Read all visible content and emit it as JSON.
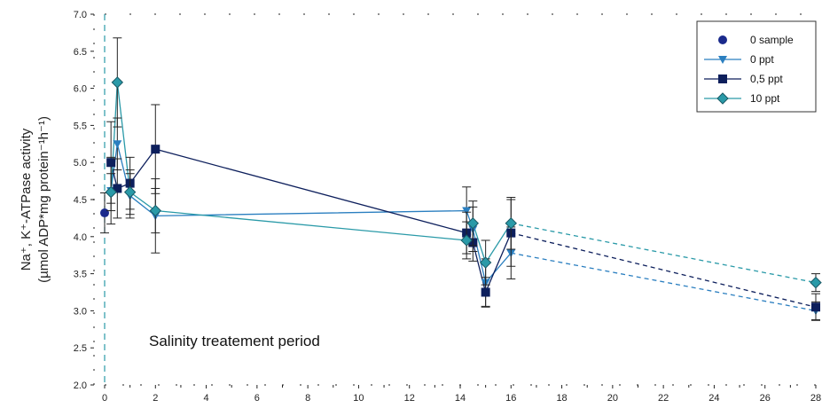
{
  "chart_data": {
    "type": "line",
    "xlim": [
      0,
      28
    ],
    "ylim": [
      2.0,
      7.0
    ],
    "x_ticks": [
      0,
      2,
      4,
      6,
      8,
      10,
      12,
      14,
      16,
      18,
      20,
      22,
      24,
      26,
      28
    ],
    "x_tick_labels": [
      "0",
      "2",
      "4",
      "6",
      "8",
      "10",
      "12",
      "14",
      "16",
      "18",
      "20",
      "22",
      "24",
      "26",
      "28"
    ],
    "y_ticks": [
      2.0,
      2.5,
      3.0,
      3.5,
      4.0,
      4.5,
      5.0,
      5.5,
      6.0,
      6.5,
      7.0
    ],
    "y_tick_labels": [
      "2.0",
      "2.5",
      "3.0",
      "3.5",
      "4.0",
      "4.5",
      "5.0",
      "5.5",
      "6.0",
      "6.5",
      "7.0"
    ],
    "ylabel_line1": "Na⁺, K⁺-ATPase activity",
    "ylabel_line2": "(µmol ADP*mg protein⁻¹h⁻¹)",
    "annotation": "Salinity treatement period",
    "treatment_marker_x": 0,
    "legend_position": "top-right",
    "grid": false,
    "series": [
      {
        "name": "0 sample",
        "color": "#1a2a8c",
        "marker": "circle",
        "x": [
          0
        ],
        "y": [
          4.32
        ],
        "err": [
          0.27
        ],
        "line": false
      },
      {
        "name": "0 ppt",
        "color": "#2b7fc0",
        "marker": "triangle-down",
        "x": [
          0.25,
          0.5,
          1,
          2,
          14.25,
          14.5,
          15,
          16,
          28
        ],
        "y": [
          4.62,
          5.25,
          4.55,
          4.28,
          4.35,
          4.1,
          3.38,
          3.78,
          3.0
        ],
        "err": [
          0.45,
          0.35,
          0.3,
          0.5,
          0.32,
          0.3,
          0.32,
          0.35,
          0.12
        ],
        "line": true
      },
      {
        "name": "0,5 ppt",
        "color": "#0d1f5c",
        "marker": "square",
        "x": [
          0.25,
          0.5,
          1,
          2,
          14.25,
          14.5,
          15,
          16,
          28
        ],
        "y": [
          5.0,
          4.65,
          4.72,
          5.18,
          4.05,
          3.92,
          3.25,
          4.05,
          3.05
        ],
        "err": [
          0.55,
          0.4,
          0.35,
          0.6,
          0.28,
          0.25,
          0.2,
          0.45,
          0.18
        ],
        "line": true
      },
      {
        "name": "10 ppt",
        "color": "#2a9aa8",
        "marker": "diamond",
        "x": [
          0.25,
          0.5,
          1,
          2,
          14.25,
          14.5,
          15,
          16,
          28
        ],
        "y": [
          4.6,
          6.08,
          4.6,
          4.35,
          3.95,
          4.18,
          3.65,
          4.18,
          3.38
        ],
        "err": [
          0.25,
          0.6,
          0.3,
          0.3,
          0.25,
          0.3,
          0.3,
          0.35,
          0.12
        ],
        "line": true
      }
    ]
  }
}
